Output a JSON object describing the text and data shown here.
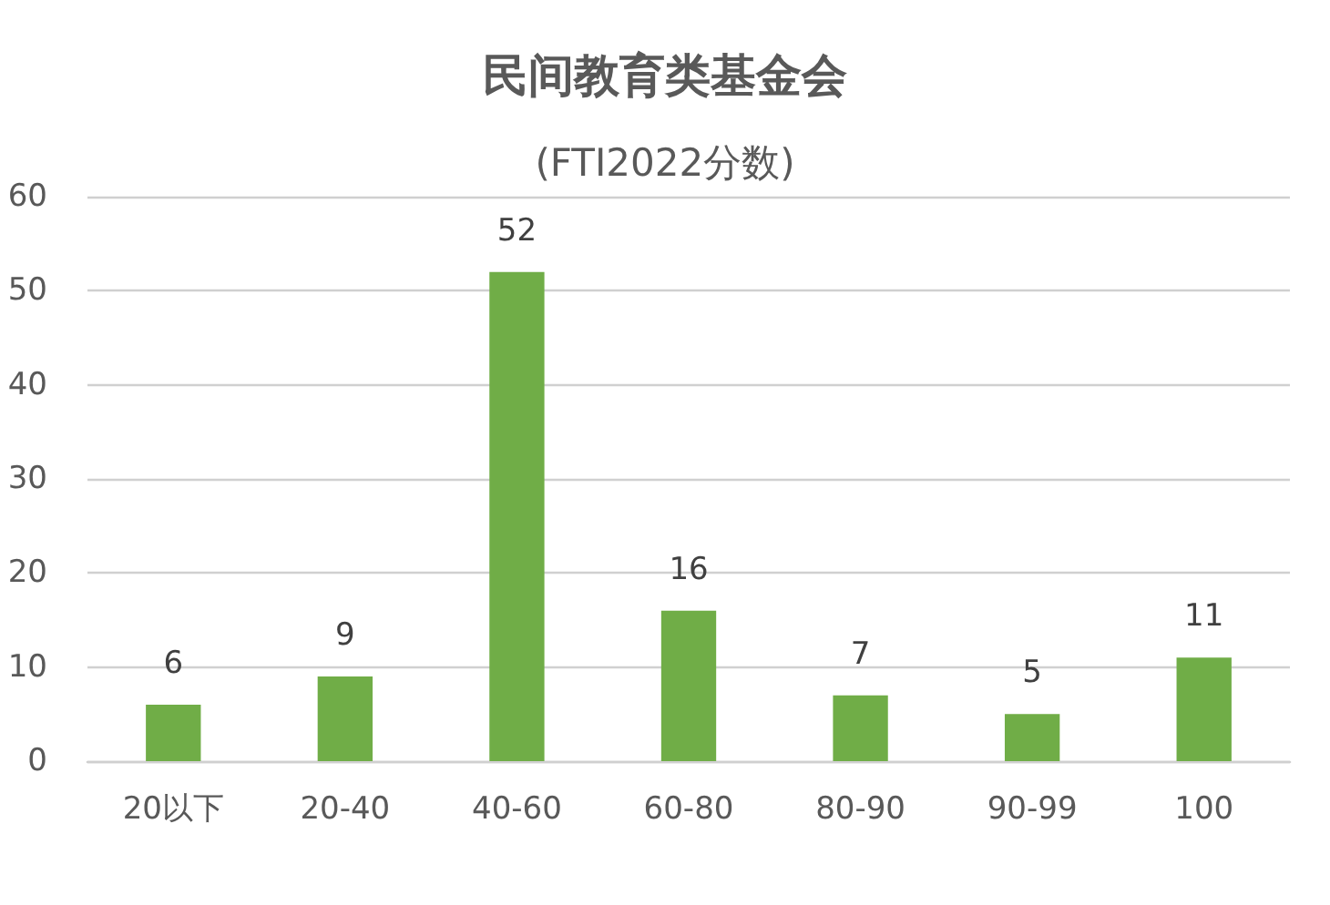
{
  "chart_data": {
    "type": "bar",
    "title": "民间教育类基金会",
    "subtitle": "(FTI2022分数)",
    "categories": [
      "20以下",
      "20-40",
      "40-60",
      "60-80",
      "80-90",
      "90-99",
      "100"
    ],
    "values": [
      6,
      9,
      52,
      16,
      7,
      5,
      11
    ],
    "color": "#70ad47",
    "ylim": [
      0,
      60
    ],
    "yticks": [
      0,
      10,
      20,
      30,
      40,
      50,
      60
    ],
    "grid": "y",
    "data_labels": true
  }
}
